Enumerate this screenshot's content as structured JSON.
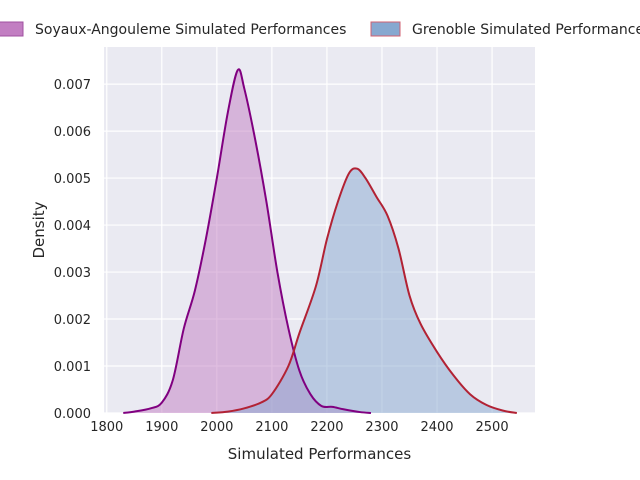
{
  "chart_data": {
    "type": "area",
    "title": "",
    "xlabel": "Simulated Performances",
    "ylabel": "Density",
    "xlim": [
      1795,
      2578
    ],
    "ylim": [
      0,
      0.00779
    ],
    "xticks": [
      1800,
      1900,
      2000,
      2100,
      2200,
      2300,
      2400,
      2500
    ],
    "xtick_labels": [
      "1800",
      "1900",
      "2000",
      "2100",
      "2200",
      "2300",
      "2400",
      "2500"
    ],
    "yticks": [
      0,
      0.001,
      0.002,
      0.003,
      0.004,
      0.005,
      0.006,
      0.007
    ],
    "ytick_labels": [
      "0.000",
      "0.001",
      "0.002",
      "0.003",
      "0.004",
      "0.005",
      "0.006",
      "0.007"
    ],
    "grid": true,
    "legend_position": "top",
    "series": [
      {
        "name": "Soyaux-Angouleme Simulated Performances",
        "line_color": "#800080",
        "fill_color": "#c27ec2",
        "x": [
          1830,
          1850,
          1880,
          1900,
          1920,
          1940,
          1960,
          1980,
          2000,
          2020,
          2038,
          2050,
          2070,
          2090,
          2110,
          2130,
          2150,
          2170,
          2190,
          2210,
          2230,
          2260,
          2280
        ],
        "y": [
          0,
          3e-05,
          0.0001,
          0.00022,
          0.0007,
          0.0018,
          0.0026,
          0.0037,
          0.005,
          0.0064,
          0.0073,
          0.0069,
          0.0058,
          0.0045,
          0.003,
          0.0018,
          0.0009,
          0.0004,
          0.00015,
          0.00013,
          8e-05,
          2e-05,
          0
        ]
      },
      {
        "name": "Grenoble Simulated Performance",
        "line_color": "#b22234",
        "fill_color": "#87a8d0",
        "x": [
          1990,
          2020,
          2050,
          2080,
          2100,
          2130,
          2150,
          2180,
          2200,
          2220,
          2240,
          2255,
          2270,
          2290,
          2310,
          2330,
          2350,
          2370,
          2400,
          2430,
          2460,
          2490,
          2520,
          2545
        ],
        "y": [
          0,
          3e-05,
          0.0001,
          0.00022,
          0.0004,
          0.001,
          0.0017,
          0.0027,
          0.0037,
          0.0045,
          0.0051,
          0.0052,
          0.005,
          0.0046,
          0.0042,
          0.0035,
          0.0025,
          0.0019,
          0.0013,
          0.0008,
          0.0004,
          0.00017,
          5e-05,
          0
        ]
      }
    ]
  }
}
